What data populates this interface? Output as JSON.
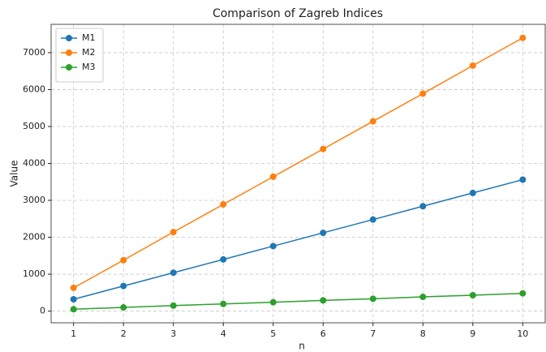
{
  "chart_data": {
    "type": "line",
    "title": "Comparison of Zagreb Indices",
    "xlabel": "n",
    "ylabel": "Value",
    "x": [
      1,
      2,
      3,
      4,
      5,
      6,
      7,
      8,
      9,
      10
    ],
    "series": [
      {
        "name": "M1",
        "color": "#1f77b4",
        "values": [
          320,
          680,
          1040,
          1400,
          1760,
          2120,
          2480,
          2840,
          3200,
          3560
        ]
      },
      {
        "name": "M2",
        "color": "#ff7f0e",
        "values": [
          630,
          1380,
          2140,
          2890,
          3640,
          4390,
          5140,
          5890,
          6650,
          7400
        ]
      },
      {
        "name": "M3",
        "color": "#2ca02c",
        "values": [
          50,
          100,
          150,
          195,
          240,
          290,
          335,
          385,
          430,
          480
        ]
      }
    ],
    "xlim": [
      0.55,
      10.45
    ],
    "ylim": [
      -317,
      7767
    ],
    "xticks": [
      1,
      2,
      3,
      4,
      5,
      6,
      7,
      8,
      9,
      10
    ],
    "yticks": [
      0,
      1000,
      2000,
      3000,
      4000,
      5000,
      6000,
      7000
    ],
    "grid": true,
    "legend": "upper left"
  }
}
